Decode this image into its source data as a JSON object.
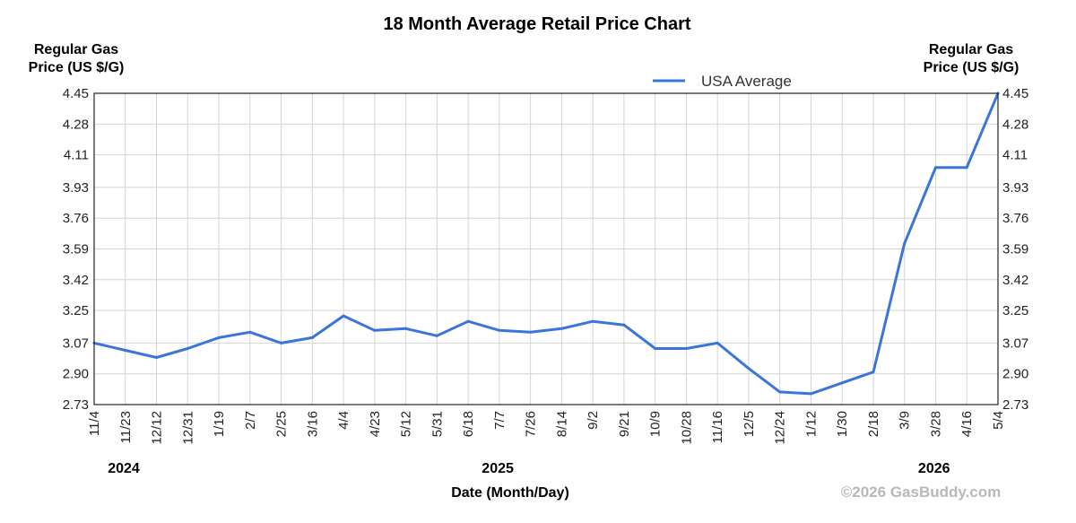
{
  "chart_data": {
    "type": "line",
    "title": "18 Month Average Retail Price Chart",
    "ylabel_left": [
      "Regular Gas",
      "Price (US $/G)"
    ],
    "ylabel_right": [
      "Regular Gas",
      "Price (US $/G)"
    ],
    "xlabel": "Date (Month/Day)",
    "credit": "©2026 GasBuddy.com",
    "legend": {
      "position": "top-right",
      "entries": [
        {
          "name": "USA Average",
          "color": "#3a75dc"
        }
      ]
    },
    "grid": true,
    "ylim": [
      2.73,
      4.45
    ],
    "yticks": [
      "4.45",
      "4.28",
      "4.11",
      "3.93",
      "3.76",
      "3.59",
      "3.42",
      "3.25",
      "3.07",
      "2.90",
      "2.73"
    ],
    "xticks": [
      "11/4",
      "11/23",
      "12/12",
      "12/31",
      "1/19",
      "2/7",
      "2/25",
      "3/16",
      "4/4",
      "4/23",
      "5/12",
      "5/31",
      "6/18",
      "7/7",
      "7/26",
      "8/14",
      "9/2",
      "9/21",
      "10/9",
      "10/28",
      "11/16",
      "12/5",
      "12/24",
      "1/12",
      "1/30",
      "2/18",
      "3/9",
      "3/28",
      "4/16",
      "5/4"
    ],
    "years": [
      {
        "label": "2024",
        "at": "11/4"
      },
      {
        "label": "2025",
        "at": "6/18"
      },
      {
        "label": "2026",
        "at": "3/9"
      }
    ],
    "series": [
      {
        "name": "USA Average",
        "color": "#3a75dc",
        "x": [
          "11/4",
          "11/23",
          "12/12",
          "12/31",
          "1/19",
          "2/7",
          "2/25",
          "3/16",
          "4/4",
          "4/23",
          "5/12",
          "5/31",
          "6/18",
          "7/7",
          "7/26",
          "8/14",
          "9/2",
          "9/21",
          "10/9",
          "10/28",
          "11/16",
          "12/5",
          "12/24",
          "1/12",
          "1/30",
          "2/18",
          "3/9",
          "3/28",
          "4/16",
          "5/4"
        ],
        "values": [
          3.07,
          3.03,
          2.99,
          3.04,
          3.1,
          3.13,
          3.07,
          3.1,
          3.22,
          3.14,
          3.15,
          3.11,
          3.19,
          3.14,
          3.13,
          3.15,
          3.19,
          3.17,
          3.04,
          3.04,
          3.07,
          2.93,
          2.8,
          2.79,
          2.85,
          2.91,
          3.62,
          4.04,
          4.04,
          4.45
        ]
      }
    ]
  }
}
